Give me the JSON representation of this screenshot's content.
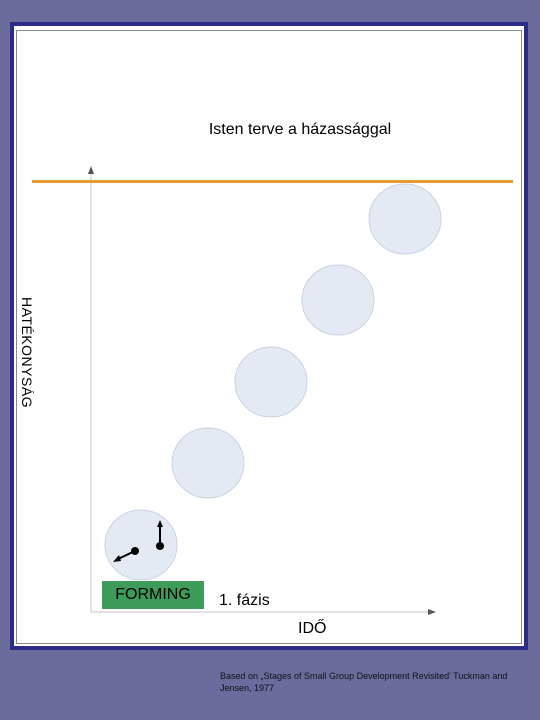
{
  "title": "Isten terve a házassággal",
  "y_axis_label": "HATÉKONYSÁG",
  "x_axis_label": "IDŐ",
  "stage_box_label": "FORMING",
  "phase_label": "1. fázis",
  "footer_note": "Based on „Stages of Small Group Development Revisited' Tuckman and Jensen, 1977",
  "colors": {
    "background": "#6b6b9e",
    "frame_border": "#2b2b8a",
    "goal_line": "#e59a33",
    "stage_circle_fill": "#e4eaf4",
    "stage_box": "#3d9c5a"
  },
  "stage_circles_count": 5
}
